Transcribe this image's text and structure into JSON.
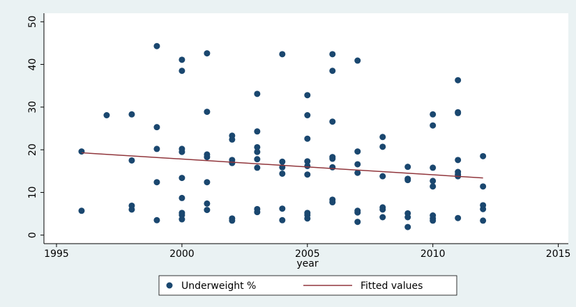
{
  "chart_data": {
    "type": "scatter",
    "x_label": "year",
    "xlim": [
      1994.5,
      2015.4
    ],
    "ylim": [
      -2,
      52
    ],
    "xticks": [
      1995,
      2000,
      2005,
      2010,
      2015
    ],
    "yticks": [
      0,
      10,
      20,
      30,
      40,
      50
    ],
    "grid": false,
    "legend": "bottom",
    "series": [
      {
        "name": "Underweight %",
        "type": "scatter",
        "color": "#1a476f",
        "x": [
          1996,
          1996,
          1997,
          1998,
          1998,
          1998,
          1998,
          1999,
          1999,
          1999,
          1999,
          1999,
          2000,
          2000,
          2000,
          2000,
          2000,
          2000,
          2000,
          2000,
          2000,
          2001,
          2001,
          2001,
          2001,
          2001,
          2001,
          2001,
          2002,
          2002,
          2002,
          2002,
          2002,
          2002,
          2003,
          2003,
          2003,
          2003,
          2003,
          2003,
          2003,
          2003,
          2004,
          2004,
          2004,
          2004,
          2004,
          2004,
          2005,
          2005,
          2005,
          2005,
          2005,
          2005,
          2005,
          2005,
          2005,
          2006,
          2006,
          2006,
          2006,
          2006,
          2006,
          2006,
          2006,
          2007,
          2007,
          2007,
          2007,
          2007,
          2007,
          2007,
          2008,
          2008,
          2008,
          2008,
          2008,
          2008,
          2009,
          2009,
          2009,
          2009,
          2009,
          2009,
          2010,
          2010,
          2010,
          2010,
          2010,
          2010,
          2010,
          2010,
          2011,
          2011,
          2011,
          2011,
          2011,
          2011,
          2011,
          2011,
          2012,
          2012,
          2012,
          2012,
          2012
        ],
        "values": [
          19.6,
          5.7,
          28.1,
          28.3,
          17.5,
          6.9,
          6.0,
          44.3,
          25.3,
          20.2,
          12.4,
          3.5,
          41.1,
          38.5,
          20.2,
          19.5,
          13.4,
          8.7,
          5.2,
          4.7,
          3.7,
          42.6,
          28.9,
          18.9,
          18.3,
          12.4,
          7.4,
          5.9,
          23.3,
          22.4,
          17.6,
          16.9,
          3.9,
          3.4,
          33.1,
          24.3,
          20.6,
          19.5,
          17.8,
          15.8,
          6.1,
          5.4,
          42.4,
          17.2,
          15.9,
          14.4,
          6.2,
          3.5,
          32.8,
          28.1,
          22.6,
          17.3,
          16.2,
          14.2,
          5.2,
          4.7,
          3.9,
          42.4,
          38.5,
          26.6,
          18.3,
          17.9,
          15.9,
          8.3,
          7.7,
          40.9,
          19.6,
          16.6,
          14.6,
          5.7,
          5.3,
          3.1,
          23.0,
          20.7,
          13.8,
          6.5,
          6.0,
          4.2,
          16.0,
          13.2,
          12.9,
          5.1,
          4.2,
          1.9,
          28.3,
          25.7,
          15.8,
          12.7,
          11.4,
          4.6,
          3.9,
          3.4,
          36.3,
          28.8,
          28.6,
          17.6,
          14.8,
          14.2,
          13.8,
          4.0,
          18.5,
          11.4,
          7.0,
          6.1,
          3.4
        ]
      },
      {
        "name": "Fitted values",
        "type": "line",
        "color": "#90353b",
        "x": [
          1996,
          2012
        ],
        "values": [
          19.3,
          13.4
        ]
      }
    ]
  }
}
